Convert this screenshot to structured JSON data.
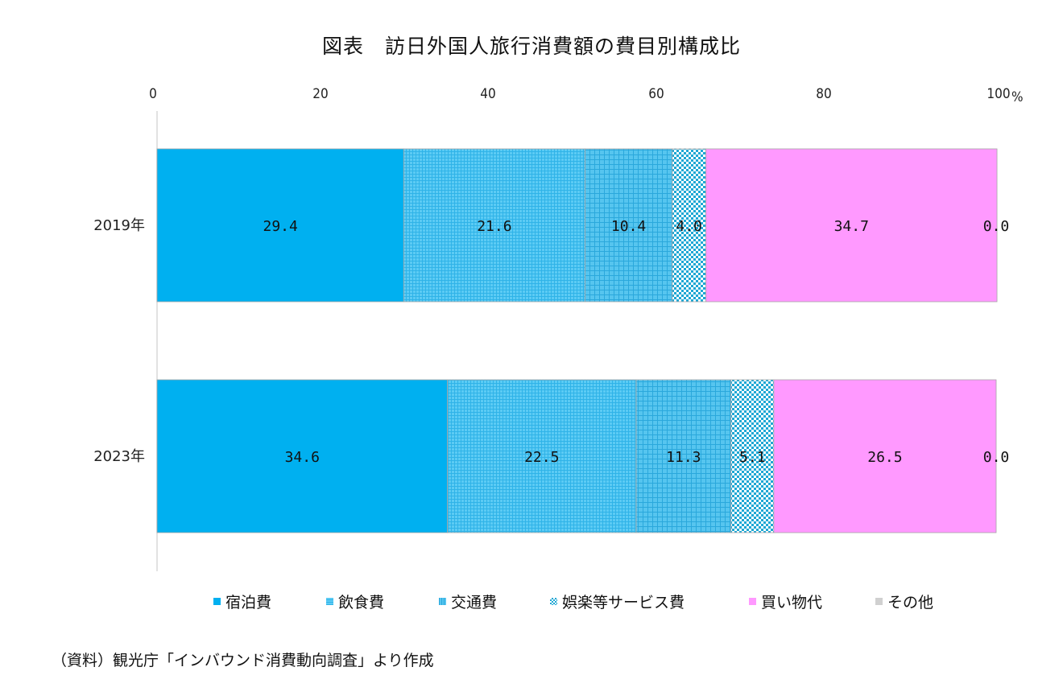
{
  "chart_data": {
    "type": "bar",
    "orientation": "horizontal",
    "stacked": true,
    "title": "図表　訪日外国人旅行消費額の費目別構成比",
    "x_unit": "%",
    "xlim": [
      0,
      100
    ],
    "x_ticks": [
      "0",
      "20",
      "40",
      "60",
      "80",
      "100"
    ],
    "categories": [
      "2019年",
      "2023年"
    ],
    "series": [
      {
        "name": "宿泊費",
        "values": [
          29.4,
          34.6
        ],
        "labels": [
          "29.4",
          "34.6"
        ],
        "color": "#00b0f0",
        "pattern": "solid"
      },
      {
        "name": "飲食費",
        "values": [
          21.6,
          22.5
        ],
        "labels": [
          "21.6",
          "22.5"
        ],
        "color": "#4dc4f2",
        "pattern": "fine-grid"
      },
      {
        "name": "交通費",
        "values": [
          10.4,
          11.3
        ],
        "labels": [
          "10.4",
          "11.3"
        ],
        "color": "#3ab8ea",
        "pattern": "grid"
      },
      {
        "name": "娯楽等サービス費",
        "values": [
          4.0,
          5.1
        ],
        "labels": [
          "4.0",
          "5.1"
        ],
        "color": "#1ea7d4",
        "pattern": "checker"
      },
      {
        "name": "買い物代",
        "values": [
          34.7,
          26.5
        ],
        "labels": [
          "34.7",
          "26.5"
        ],
        "color": "#ff99ff",
        "pattern": "solid"
      },
      {
        "name": "その他",
        "values": [
          0.0,
          0.0
        ],
        "labels": [
          "0.0",
          "0.0"
        ],
        "color": "#d0d0d0",
        "pattern": "solid"
      }
    ],
    "legend_position": "bottom",
    "grid": false
  },
  "source_note": "（資料）観光庁「インバウンド消費動向調査」より作成"
}
